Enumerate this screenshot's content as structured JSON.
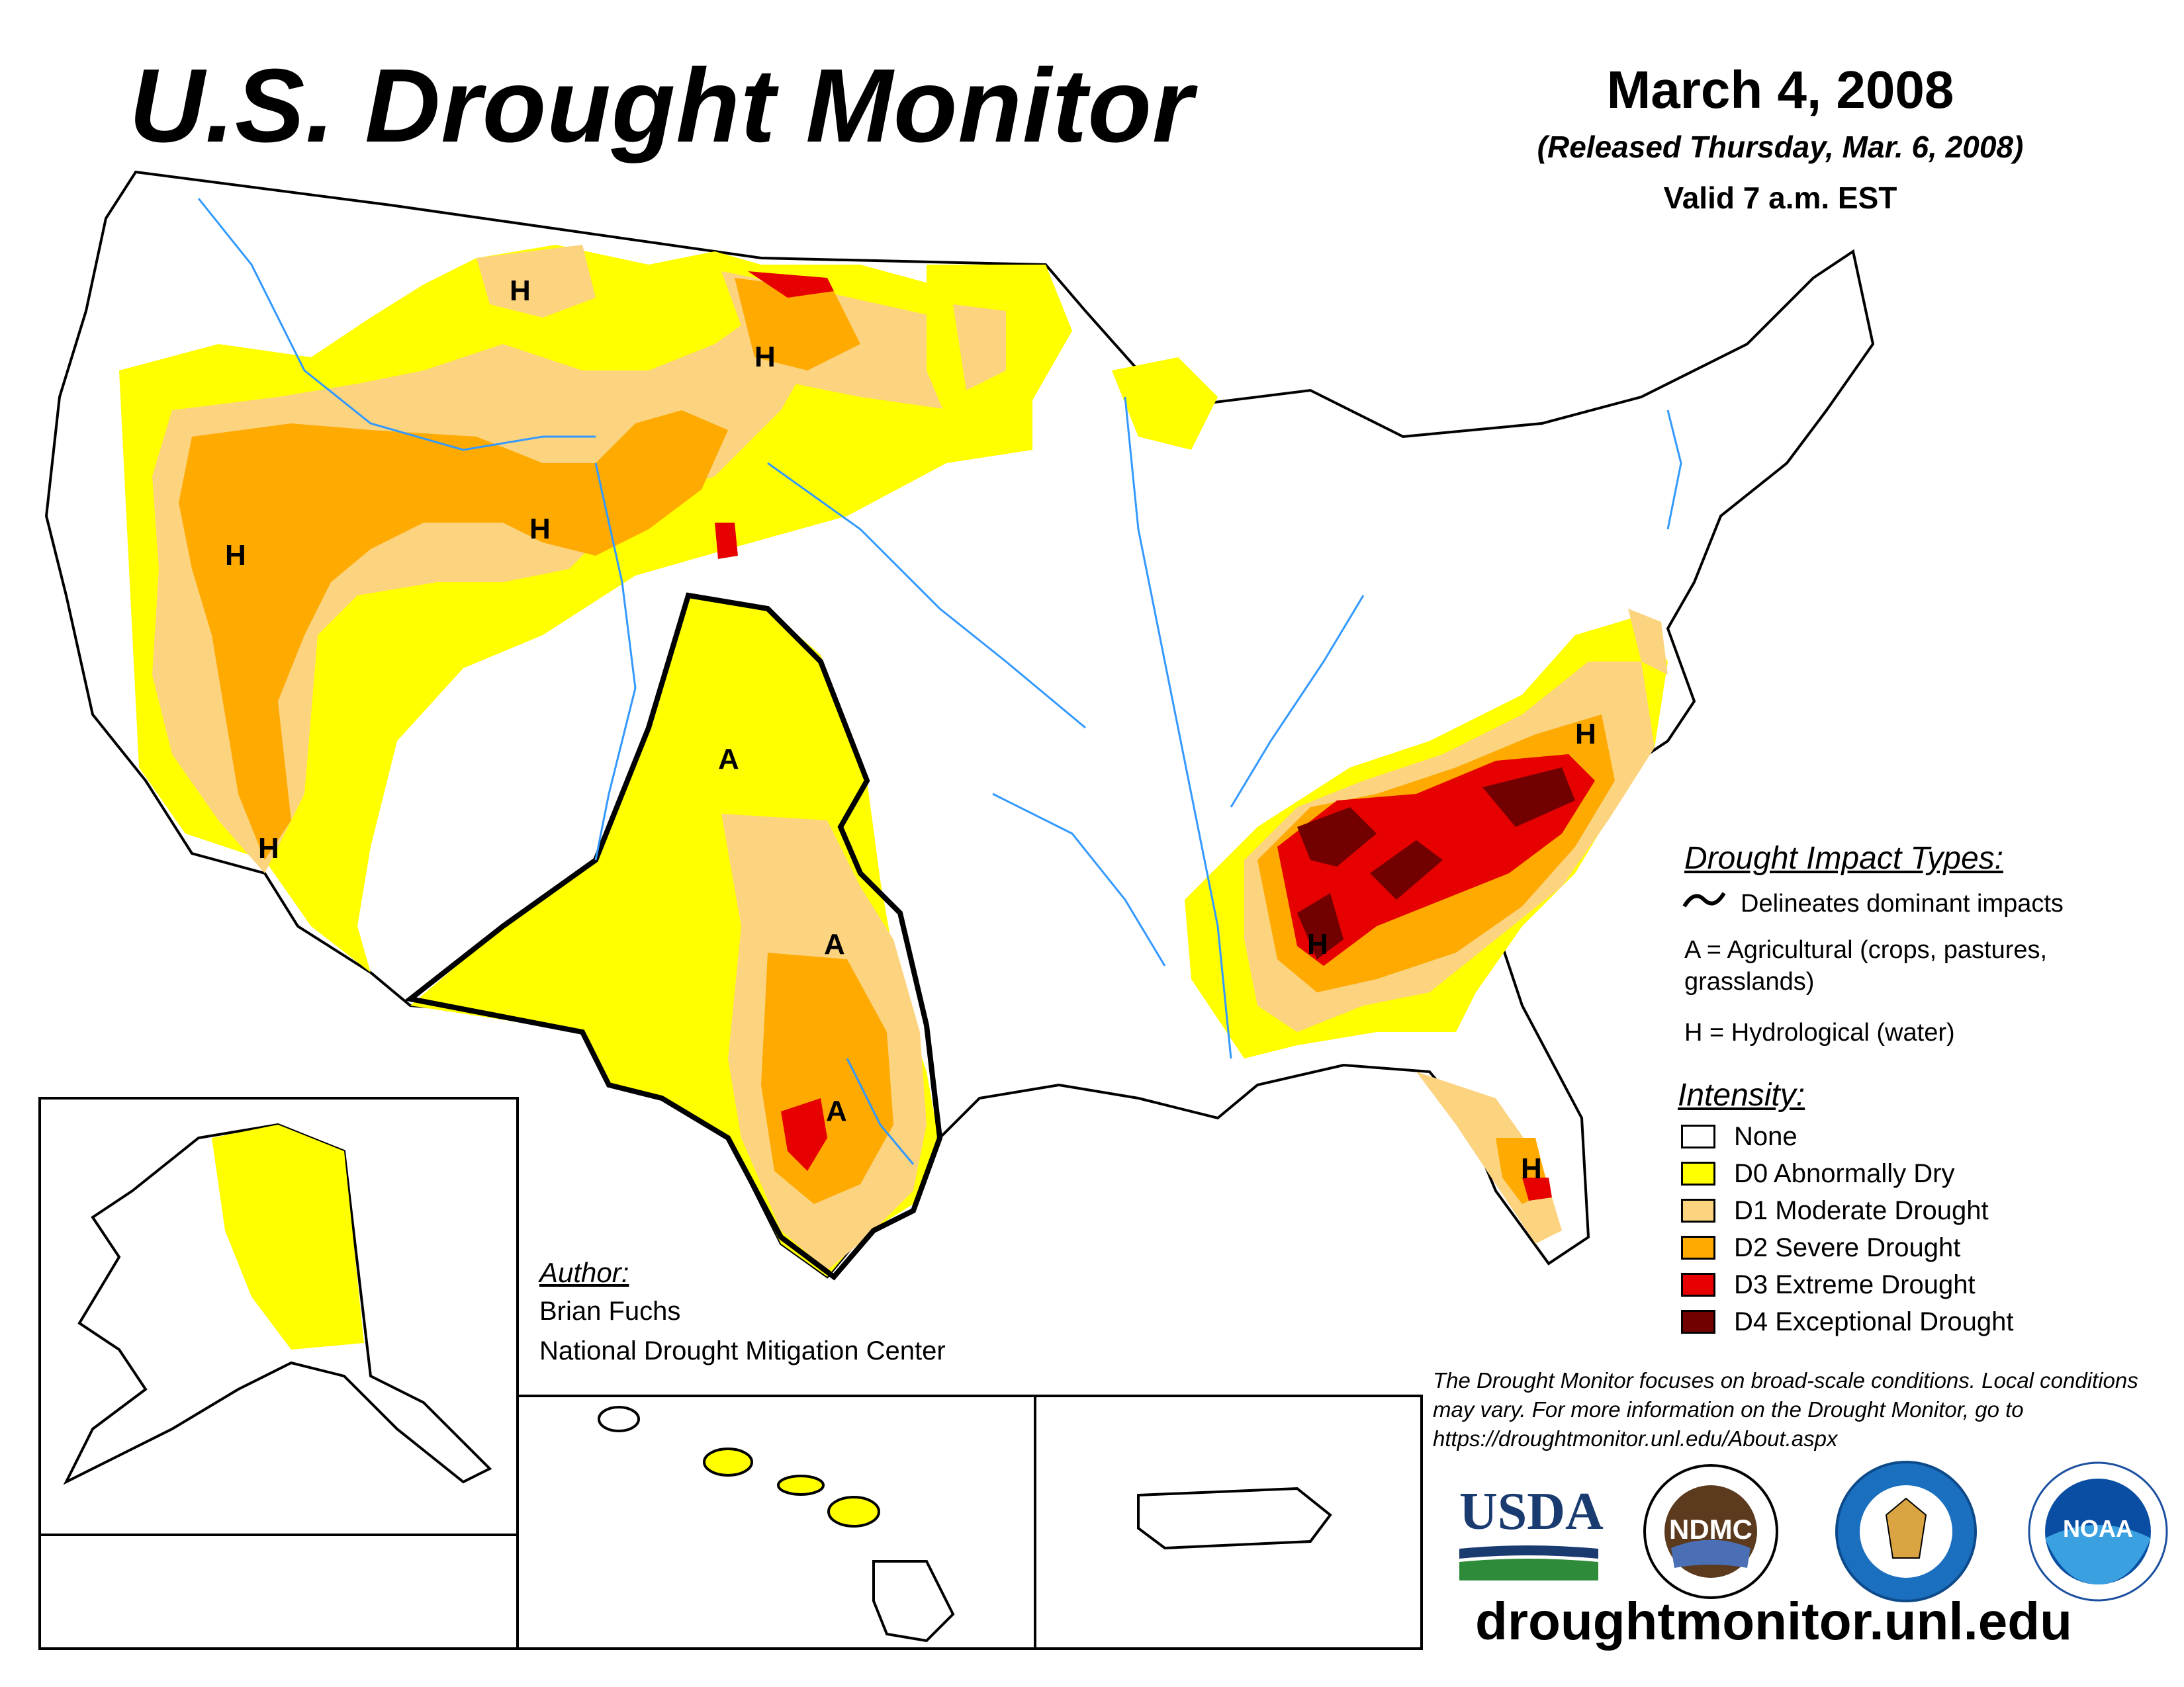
{
  "title": "U.S. Drought Monitor",
  "date": "March 4, 2008",
  "released": "(Released Thursday, Mar. 6, 2008)",
  "valid": "Valid 7 a.m. EST",
  "impact_types": {
    "heading": "Drought Impact Types:",
    "delineates": "Delineates dominant impacts",
    "agricultural": "A = Agricultural (crops, pastures,",
    "agricultural_cont": "grasslands)",
    "hydrological": "H = Hydrological (water)"
  },
  "intensity": {
    "heading": "Intensity:",
    "levels": [
      {
        "label": "None",
        "color": "#ffffff"
      },
      {
        "label": "D0 Abnormally Dry",
        "color": "#ffff00"
      },
      {
        "label": "D1 Moderate Drought",
        "color": "#fcd37f"
      },
      {
        "label": "D2 Severe Drought",
        "color": "#ffaa00"
      },
      {
        "label": "D3 Extreme Drought",
        "color": "#e60000"
      },
      {
        "label": "D4 Exceptional Drought",
        "color": "#730000"
      }
    ]
  },
  "map_labels": {
    "hydrological": "H",
    "agricultural": "A"
  },
  "author": {
    "heading": "Author:",
    "name": "Brian Fuchs",
    "organization": "National Drought Mitigation Center"
  },
  "note": "The Drought Monitor focuses on broad-scale conditions. Local conditions may vary. For more information on the Drought Monitor, go to https://droughtmonitor.unl.edu/About.aspx",
  "logos": {
    "usda": "USDA",
    "ndmc": "NDMC",
    "noaa": "NOAA"
  },
  "url": "droughtmonitor.unl.edu",
  "colors": {
    "d0": "#ffff00",
    "d1": "#fcd37f",
    "d2": "#ffaa00",
    "d3": "#e60000",
    "d4": "#730000",
    "water": "#3399ff"
  }
}
